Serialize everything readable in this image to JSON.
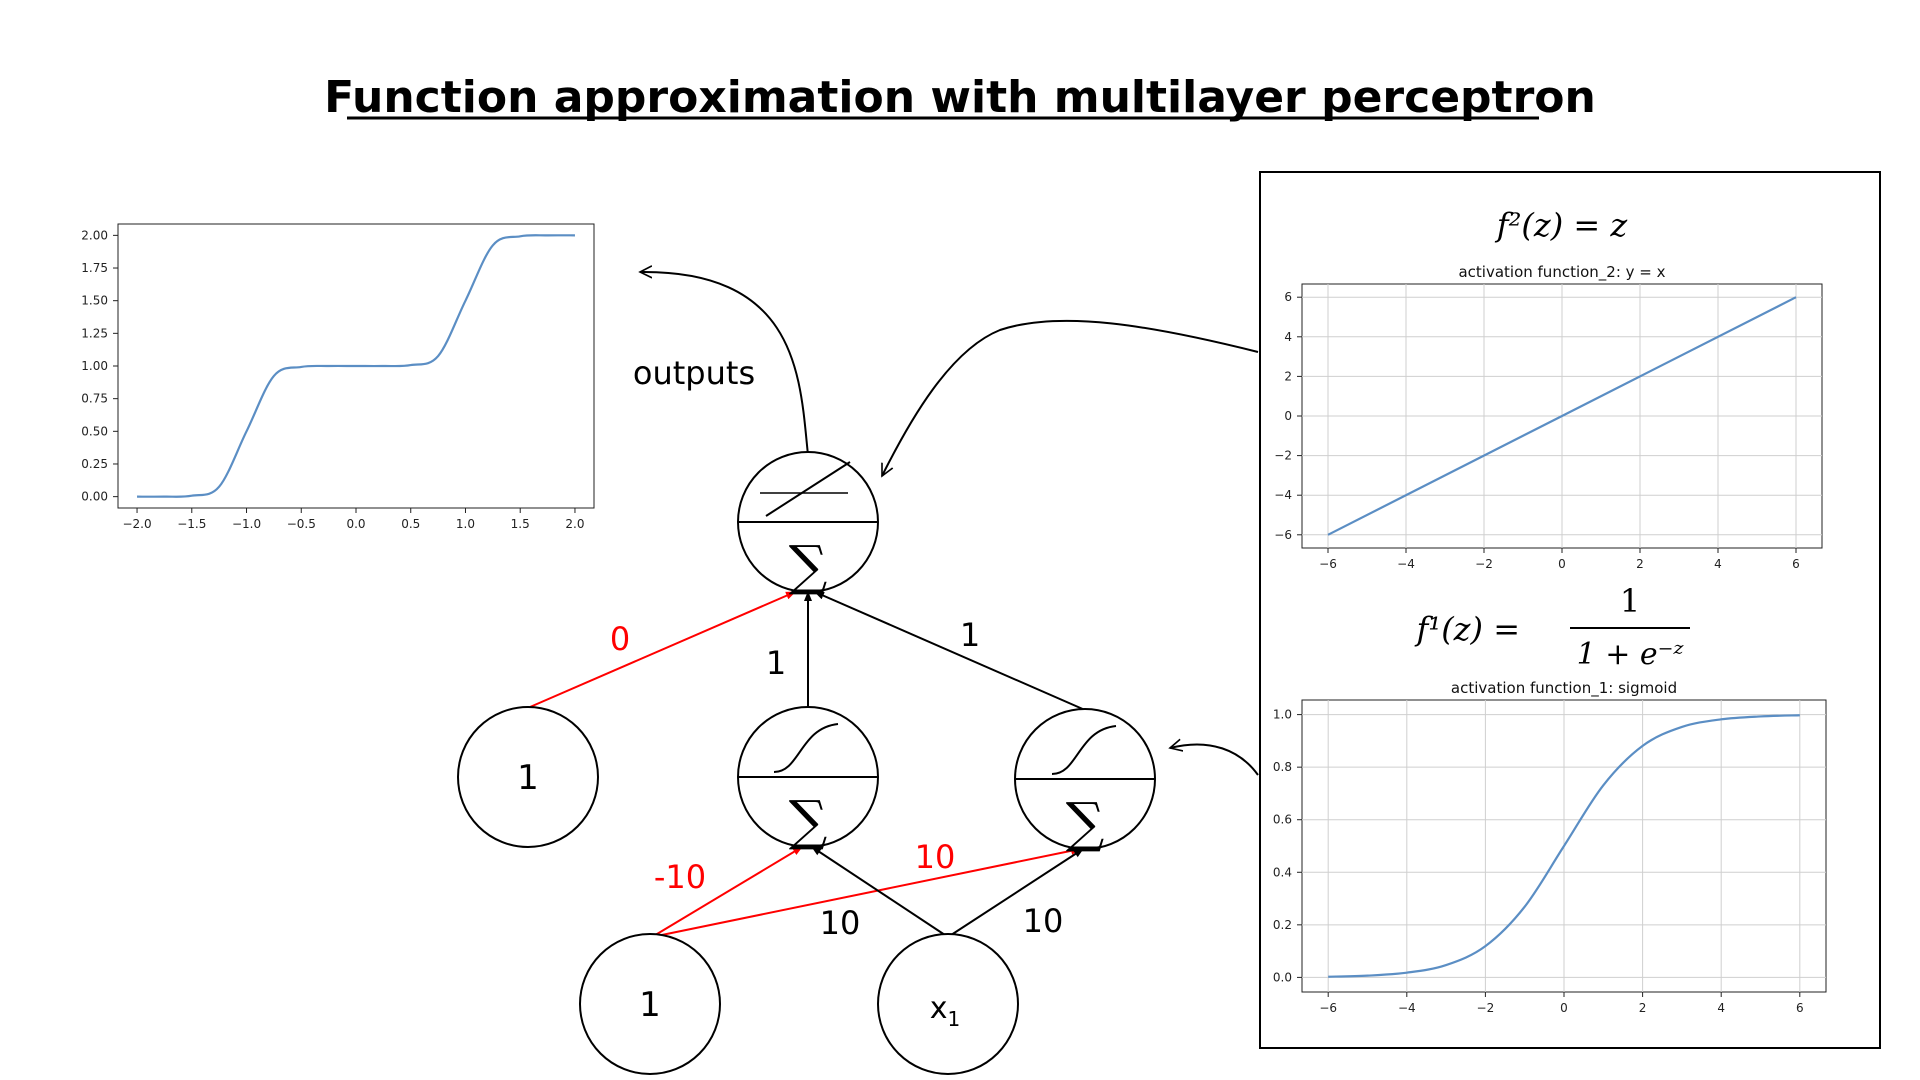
{
  "title": "Function approximation with multilayer perceptron",
  "outputs_label": "outputs",
  "nodes": {
    "bias_hidden": "1",
    "bias_input": "1",
    "input_var": "x",
    "input_sub": "1"
  },
  "weights": {
    "bias_to_output": "0",
    "hidden1_to_output": "1",
    "hidden2_to_output": "1",
    "bias_to_hidden1": "-10",
    "bias_to_hidden2": "10",
    "x_to_hidden1": "10",
    "x_to_hidden2": "10"
  },
  "colors": {
    "negative_or_bias": "#ff0000",
    "edge": "#000000",
    "curve": "#5b8ec4"
  },
  "formulas": {
    "f2_lhs": "f²(z) = z",
    "f1_lhs": "f¹(z) =",
    "f1_num": "1",
    "f1_den": "1 + e⁻ᶻ"
  },
  "chart_data": [
    {
      "type": "line",
      "title": "",
      "xlim": [
        -2.0,
        2.0
      ],
      "ylim": [
        0.0,
        2.0
      ],
      "xticks": [
        "−2.0",
        "−1.5",
        "−1.0",
        "−0.5",
        "0.0",
        "0.5",
        "1.0",
        "1.5",
        "2.0"
      ],
      "yticks": [
        "0.00",
        "0.25",
        "0.50",
        "0.75",
        "1.00",
        "1.25",
        "1.50",
        "1.75",
        "2.00"
      ],
      "x": [
        -2.0,
        -1.75,
        -1.5,
        -1.25,
        -1.0,
        -0.75,
        -0.5,
        -0.25,
        0.0,
        0.25,
        0.5,
        0.75,
        1.0,
        1.25,
        1.5,
        1.75,
        2.0
      ],
      "y": [
        0.0,
        0.0,
        0.007,
        0.076,
        0.5,
        0.924,
        0.993,
        1.0,
        1.0,
        1.0,
        1.007,
        1.076,
        1.5,
        1.924,
        1.993,
        2.0,
        2.0
      ],
      "grid": false
    },
    {
      "type": "line",
      "title": "activation function_2: y = x",
      "xlim": [
        -6,
        6
      ],
      "ylim": [
        -6,
        6
      ],
      "xticks": [
        "−6",
        "−4",
        "−2",
        "0",
        "2",
        "4",
        "6"
      ],
      "yticks": [
        "−6",
        "−4",
        "−2",
        "0",
        "2",
        "4",
        "6"
      ],
      "x": [
        -6,
        6
      ],
      "y": [
        -6,
        6
      ],
      "grid": true
    },
    {
      "type": "line",
      "title": "activation function_1: sigmoid",
      "xlim": [
        -6,
        6
      ],
      "ylim": [
        0.0,
        1.0
      ],
      "xticks": [
        "−6",
        "−4",
        "−2",
        "0",
        "2",
        "4",
        "6"
      ],
      "yticks": [
        "0.0",
        "0.2",
        "0.4",
        "0.6",
        "0.8",
        "1.0"
      ],
      "x": [
        -6,
        -5,
        -4,
        -3,
        -2,
        -1,
        0,
        1,
        2,
        3,
        4,
        5,
        6
      ],
      "y": [
        0.0025,
        0.0067,
        0.018,
        0.047,
        0.119,
        0.269,
        0.5,
        0.731,
        0.881,
        0.953,
        0.982,
        0.993,
        0.9975
      ],
      "grid": true
    }
  ]
}
